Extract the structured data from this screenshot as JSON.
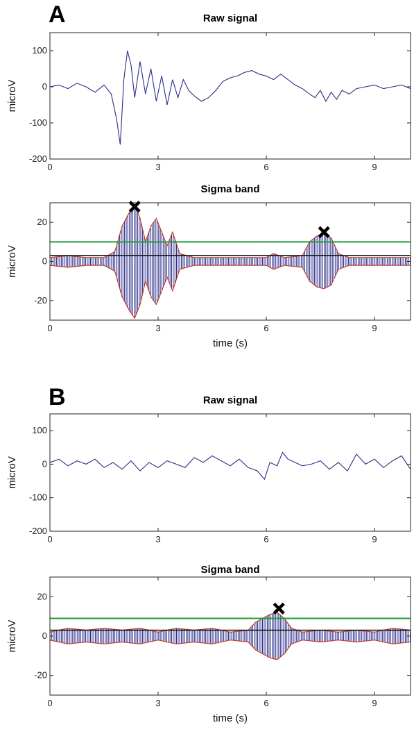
{
  "figure": {
    "panels": [
      {
        "letter": "A"
      },
      {
        "letter": "B"
      }
    ]
  },
  "chart_data": [
    {
      "panel": "A",
      "type": "line",
      "title": "Raw signal",
      "xlabel": "",
      "ylabel": "microV",
      "xlim": [
        0,
        10
      ],
      "ylim": [
        -200,
        150
      ],
      "xticks": [
        0,
        3,
        6,
        9
      ],
      "yticks": [
        100,
        0,
        -100,
        -200
      ],
      "series": [
        {
          "color": "#2b2b8a",
          "x": [
            0,
            0.25,
            0.5,
            0.75,
            1.0,
            1.25,
            1.5,
            1.7,
            1.85,
            1.95,
            2.05,
            2.15,
            2.25,
            2.35,
            2.5,
            2.65,
            2.8,
            2.95,
            3.1,
            3.25,
            3.4,
            3.55,
            3.7,
            3.85,
            4.0,
            4.2,
            4.4,
            4.6,
            4.8,
            5.0,
            5.2,
            5.4,
            5.6,
            5.8,
            6.0,
            6.2,
            6.4,
            6.6,
            6.8,
            7.0,
            7.2,
            7.35,
            7.5,
            7.65,
            7.8,
            7.95,
            8.1,
            8.3,
            8.5,
            8.75,
            9.0,
            9.25,
            9.5,
            9.75,
            10.0
          ],
          "y": [
            0,
            5,
            -5,
            10,
            0,
            -15,
            5,
            -20,
            -90,
            -160,
            20,
            100,
            60,
            -30,
            70,
            -20,
            50,
            -40,
            30,
            -50,
            20,
            -30,
            20,
            -10,
            -25,
            -40,
            -30,
            -10,
            15,
            25,
            30,
            40,
            45,
            35,
            30,
            20,
            35,
            20,
            5,
            -5,
            -20,
            -30,
            -10,
            -40,
            -15,
            -35,
            -10,
            -20,
            -5,
            0,
            5,
            -5,
            0,
            5,
            -5
          ]
        }
      ]
    },
    {
      "panel": "A",
      "type": "line",
      "title": "Sigma band",
      "xlabel": "time (s)",
      "ylabel": "microV",
      "xlim": [
        0,
        10
      ],
      "ylim": [
        -30,
        30
      ],
      "xticks": [
        0,
        3,
        6,
        9
      ],
      "yticks": [
        20,
        0,
        -20
      ],
      "threshold_upper": 10,
      "threshold_lower": 3,
      "envelope_color": "#c0392b",
      "signal_color": "#2b2b8a",
      "envelope": {
        "x": [
          0,
          0.5,
          1.0,
          1.5,
          1.8,
          2.0,
          2.2,
          2.35,
          2.5,
          2.65,
          2.8,
          2.95,
          3.1,
          3.25,
          3.4,
          3.6,
          4.0,
          4.5,
          5.0,
          5.5,
          6.0,
          6.2,
          6.5,
          7.0,
          7.2,
          7.4,
          7.6,
          7.8,
          8.0,
          8.3,
          8.6,
          9.0,
          9.5,
          10.0
        ],
        "y": [
          2,
          3,
          2,
          2,
          5,
          18,
          25,
          29,
          22,
          10,
          18,
          22,
          15,
          8,
          15,
          4,
          2,
          2,
          2,
          2,
          2,
          4,
          2,
          3,
          10,
          13,
          14,
          12,
          4,
          2,
          2,
          2,
          2,
          2
        ]
      },
      "markers": [
        {
          "x": 2.35,
          "y": 28,
          "symbol": "x"
        },
        {
          "x": 7.6,
          "y": 15,
          "symbol": "x"
        }
      ]
    },
    {
      "panel": "B",
      "type": "line",
      "title": "Raw signal",
      "xlabel": "",
      "ylabel": "microV",
      "xlim": [
        0,
        10
      ],
      "ylim": [
        -200,
        150
      ],
      "xticks": [
        0,
        3,
        6,
        9
      ],
      "yticks": [
        100,
        0,
        -100,
        -200
      ],
      "series": [
        {
          "color": "#2b2b8a",
          "x": [
            0,
            0.25,
            0.5,
            0.75,
            1.0,
            1.25,
            1.5,
            1.75,
            2.0,
            2.25,
            2.5,
            2.75,
            3.0,
            3.25,
            3.5,
            3.75,
            4.0,
            4.25,
            4.5,
            4.75,
            5.0,
            5.25,
            5.5,
            5.75,
            5.95,
            6.1,
            6.3,
            6.45,
            6.6,
            6.8,
            7.0,
            7.25,
            7.5,
            7.75,
            8.0,
            8.25,
            8.5,
            8.75,
            9.0,
            9.25,
            9.5,
            9.75,
            10.0
          ],
          "y": [
            5,
            15,
            -5,
            10,
            0,
            15,
            -10,
            5,
            -15,
            10,
            -20,
            5,
            -10,
            10,
            0,
            -10,
            20,
            5,
            25,
            10,
            -5,
            15,
            -10,
            -20,
            -45,
            5,
            -5,
            35,
            15,
            5,
            -5,
            0,
            10,
            -15,
            5,
            -20,
            30,
            0,
            15,
            -10,
            10,
            25,
            -15
          ]
        }
      ]
    },
    {
      "panel": "B",
      "type": "line",
      "title": "Sigma band",
      "xlabel": "time (s)",
      "ylabel": "microV",
      "xlim": [
        0,
        10
      ],
      "ylim": [
        -30,
        30
      ],
      "xticks": [
        0,
        3,
        6,
        9
      ],
      "yticks": [
        20,
        0,
        -20
      ],
      "threshold_upper": 9,
      "threshold_lower": 3,
      "envelope_color": "#c0392b",
      "signal_color": "#2b2b8a",
      "envelope": {
        "x": [
          0,
          0.5,
          1.0,
          1.5,
          2.0,
          2.5,
          3.0,
          3.5,
          4.0,
          4.5,
          5.0,
          5.5,
          5.7,
          5.9,
          6.1,
          6.3,
          6.5,
          6.7,
          7.0,
          7.5,
          8.0,
          8.5,
          9.0,
          9.5,
          10.0
        ],
        "y": [
          2,
          4,
          3,
          4,
          3,
          4,
          2,
          4,
          3,
          4,
          2,
          3,
          7,
          9,
          11,
          12,
          9,
          4,
          2,
          3,
          2,
          3,
          2,
          4,
          3
        ]
      },
      "markers": [
        {
          "x": 6.35,
          "y": 14,
          "symbol": "x"
        }
      ]
    }
  ]
}
